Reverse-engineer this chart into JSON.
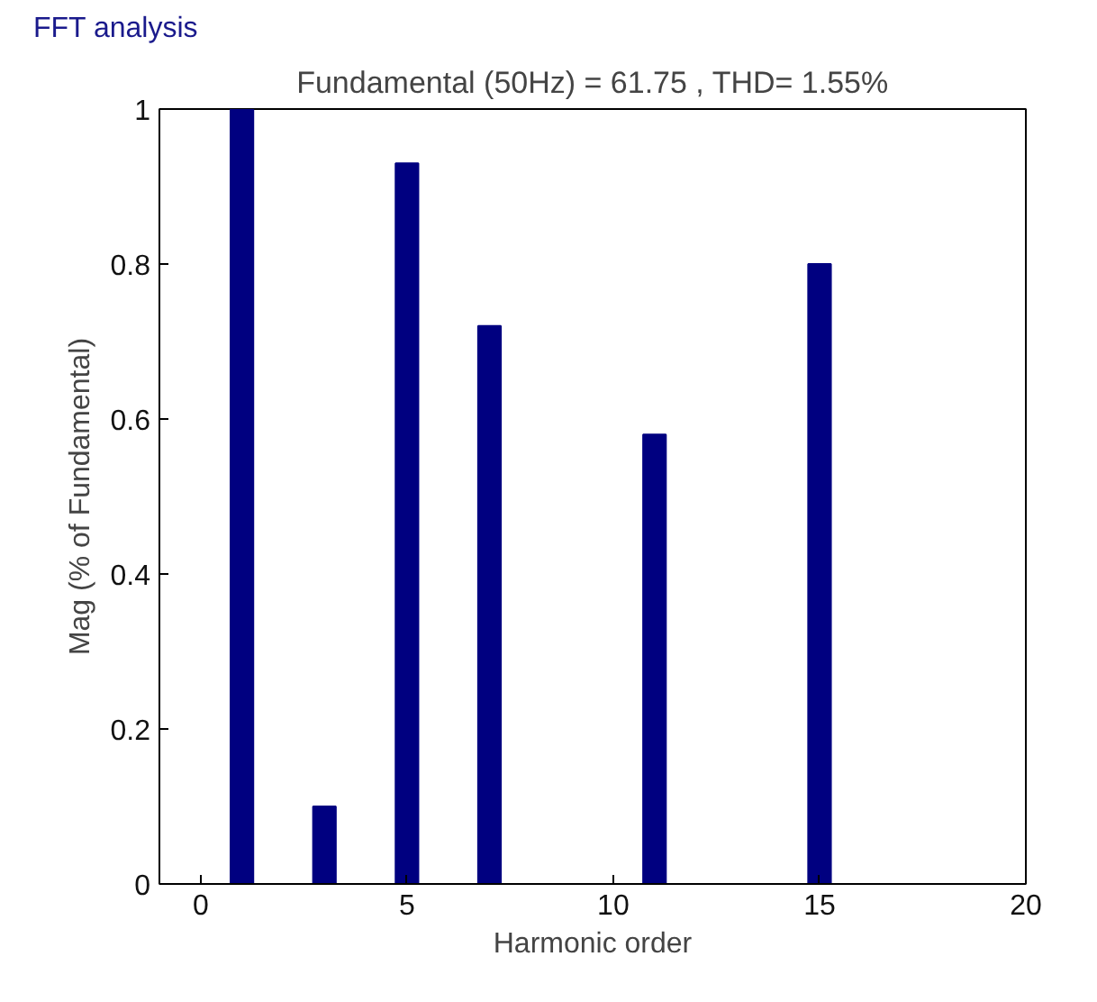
{
  "chart_data": {
    "type": "bar",
    "title": "FFT analysis",
    "subtitle": "Fundamental (50Hz) = 61.75 , THD= 1.55%",
    "xlabel": "Harmonic order",
    "ylabel": "Mag (% of Fundamental)",
    "x": [
      1,
      3,
      5,
      7,
      11,
      15
    ],
    "values": [
      1.0,
      0.1,
      0.93,
      0.72,
      0.58,
      0.8
    ],
    "color": "#000080",
    "xlim": [
      -1,
      20
    ],
    "xticks": [
      0,
      5,
      10,
      15,
      20
    ],
    "ylim": [
      0,
      1
    ],
    "yticks": [
      0,
      0.2,
      0.4,
      0.6,
      0.8,
      1
    ],
    "grid": false
  }
}
